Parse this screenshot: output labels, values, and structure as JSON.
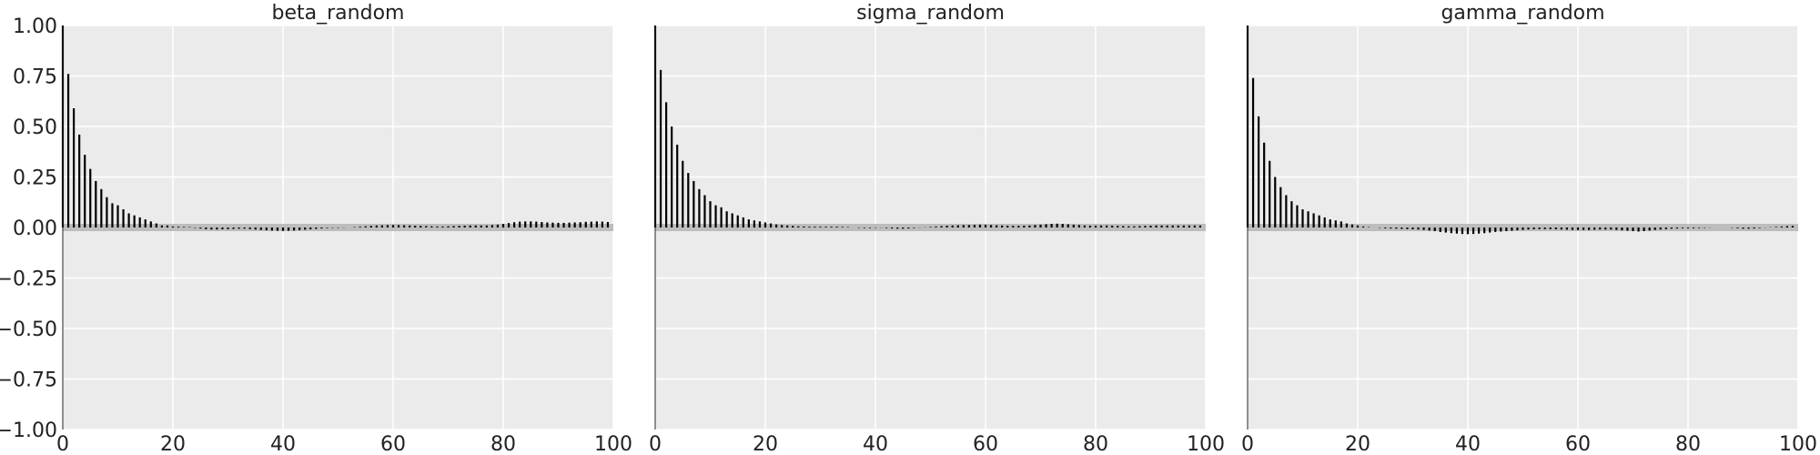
{
  "chart_data": [
    {
      "type": "bar",
      "title": "beta_random",
      "xlim": [
        0,
        100
      ],
      "ylim": [
        -1,
        1
      ],
      "grid": true,
      "x_ticks": [
        "0",
        "20",
        "40",
        "60",
        "80",
        "100"
      ],
      "y_ticks": [
        "1.00",
        "0.75",
        "0.50",
        "0.25",
        "0.00",
        "−0.25",
        "−0.50",
        "−0.75",
        "−1.00"
      ],
      "x": [
        0,
        1,
        2,
        3,
        4,
        5,
        6,
        7,
        8,
        9,
        10,
        11,
        12,
        13,
        14,
        15,
        16,
        17,
        18,
        19,
        20,
        21,
        22,
        23,
        24,
        25,
        26,
        27,
        28,
        29,
        30,
        31,
        32,
        33,
        34,
        35,
        36,
        37,
        38,
        39,
        40,
        41,
        42,
        43,
        44,
        45,
        46,
        47,
        48,
        49,
        50,
        51,
        52,
        53,
        54,
        55,
        56,
        57,
        58,
        59,
        60,
        61,
        62,
        63,
        64,
        65,
        66,
        67,
        68,
        69,
        70,
        71,
        72,
        73,
        74,
        75,
        76,
        77,
        78,
        79,
        80,
        81,
        82,
        83,
        84,
        85,
        86,
        87,
        88,
        89,
        90,
        91,
        92,
        93,
        94,
        95,
        96,
        97,
        98,
        99
      ],
      "values": [
        1.0,
        0.76,
        0.59,
        0.46,
        0.36,
        0.29,
        0.23,
        0.19,
        0.15,
        0.12,
        0.11,
        0.09,
        0.07,
        0.06,
        0.05,
        0.04,
        0.03,
        0.02,
        0.01,
        0.01,
        0.005,
        0.004,
        0.003,
        0.002,
        -0.002,
        -0.005,
        -0.008,
        -0.01,
        -0.01,
        -0.009,
        -0.008,
        -0.007,
        -0.006,
        -0.006,
        -0.008,
        -0.01,
        -0.012,
        -0.014,
        -0.015,
        -0.016,
        -0.017,
        -0.016,
        -0.015,
        -0.013,
        -0.011,
        -0.009,
        -0.007,
        -0.005,
        -0.003,
        -0.002,
        -0.002,
        -0.001,
        0.0,
        0.002,
        0.004,
        0.006,
        0.008,
        0.01,
        0.011,
        0.012,
        0.012,
        0.012,
        0.011,
        0.01,
        0.009,
        0.008,
        0.007,
        0.006,
        0.005,
        0.005,
        0.006,
        0.007,
        0.008,
        0.009,
        0.01,
        0.01,
        0.01,
        0.01,
        0.012,
        0.014,
        0.018,
        0.022,
        0.026,
        0.029,
        0.03,
        0.03,
        0.029,
        0.027,
        0.025,
        0.024,
        0.023,
        0.023,
        0.024,
        0.025,
        0.026,
        0.028,
        0.029,
        0.03,
        0.029,
        0.027
      ]
    },
    {
      "type": "bar",
      "title": "sigma_random",
      "xlim": [
        0,
        100
      ],
      "ylim": [
        -1,
        1
      ],
      "grid": true,
      "x_ticks": [
        "0",
        "20",
        "40",
        "60",
        "80",
        "100"
      ],
      "x": [
        0,
        1,
        2,
        3,
        4,
        5,
        6,
        7,
        8,
        9,
        10,
        11,
        12,
        13,
        14,
        15,
        16,
        17,
        18,
        19,
        20,
        21,
        22,
        23,
        24,
        25,
        26,
        27,
        28,
        29,
        30,
        31,
        32,
        33,
        34,
        35,
        36,
        37,
        38,
        39,
        40,
        41,
        42,
        43,
        44,
        45,
        46,
        47,
        48,
        49,
        50,
        51,
        52,
        53,
        54,
        55,
        56,
        57,
        58,
        59,
        60,
        61,
        62,
        63,
        64,
        65,
        66,
        67,
        68,
        69,
        70,
        71,
        72,
        73,
        74,
        75,
        76,
        77,
        78,
        79,
        80,
        81,
        82,
        83,
        84,
        85,
        86,
        87,
        88,
        89,
        90,
        91,
        92,
        93,
        94,
        95,
        96,
        97,
        98,
        99
      ],
      "values": [
        1.0,
        0.78,
        0.62,
        0.5,
        0.41,
        0.33,
        0.27,
        0.23,
        0.19,
        0.16,
        0.13,
        0.11,
        0.1,
        0.08,
        0.07,
        0.06,
        0.05,
        0.04,
        0.035,
        0.03,
        0.025,
        0.02,
        0.015,
        0.012,
        0.01,
        0.008,
        0.006,
        0.005,
        0.004,
        0.004,
        0.004,
        0.004,
        0.004,
        0.004,
        0.003,
        0.002,
        0.0,
        -0.002,
        -0.003,
        -0.003,
        -0.002,
        -0.001,
        -0.003,
        -0.005,
        -0.006,
        -0.006,
        -0.005,
        -0.003,
        -0.001,
        0.001,
        0.003,
        0.005,
        0.007,
        0.009,
        0.01,
        0.011,
        0.012,
        0.012,
        0.013,
        0.014,
        0.013,
        0.012,
        0.011,
        0.01,
        0.009,
        0.008,
        0.008,
        0.009,
        0.01,
        0.012,
        0.014,
        0.016,
        0.018,
        0.019,
        0.018,
        0.016,
        0.014,
        0.012,
        0.01,
        0.009,
        0.009,
        0.01,
        0.01,
        0.009,
        0.008,
        0.007,
        0.006,
        0.006,
        0.007,
        0.008,
        0.009,
        0.01,
        0.01,
        0.01,
        0.01,
        0.01,
        0.01,
        0.01,
        0.01,
        0.01
      ]
    },
    {
      "type": "bar",
      "title": "gamma_random",
      "xlim": [
        0,
        100
      ],
      "ylim": [
        -1,
        1
      ],
      "grid": true,
      "x_ticks": [
        "0",
        "20",
        "40",
        "60",
        "80",
        "100"
      ],
      "x": [
        0,
        1,
        2,
        3,
        4,
        5,
        6,
        7,
        8,
        9,
        10,
        11,
        12,
        13,
        14,
        15,
        16,
        17,
        18,
        19,
        20,
        21,
        22,
        23,
        24,
        25,
        26,
        27,
        28,
        29,
        30,
        31,
        32,
        33,
        34,
        35,
        36,
        37,
        38,
        39,
        40,
        41,
        42,
        43,
        44,
        45,
        46,
        47,
        48,
        49,
        50,
        51,
        52,
        53,
        54,
        55,
        56,
        57,
        58,
        59,
        60,
        61,
        62,
        63,
        64,
        65,
        66,
        67,
        68,
        69,
        70,
        71,
        72,
        73,
        74,
        75,
        76,
        77,
        78,
        79,
        80,
        81,
        82,
        83,
        84,
        85,
        86,
        87,
        88,
        89,
        90,
        91,
        92,
        93,
        94,
        95,
        96,
        97,
        98,
        99
      ],
      "values": [
        1.0,
        0.74,
        0.55,
        0.42,
        0.33,
        0.25,
        0.2,
        0.16,
        0.13,
        0.11,
        0.09,
        0.08,
        0.07,
        0.06,
        0.05,
        0.04,
        0.035,
        0.03,
        0.02,
        0.015,
        0.01,
        0.005,
        0.002,
        0.0,
        -0.002,
        -0.004,
        -0.005,
        -0.006,
        -0.007,
        -0.008,
        -0.009,
        -0.01,
        -0.012,
        -0.015,
        -0.018,
        -0.022,
        -0.025,
        -0.028,
        -0.03,
        -0.032,
        -0.033,
        -0.032,
        -0.03,
        -0.028,
        -0.025,
        -0.022,
        -0.02,
        -0.018,
        -0.016,
        -0.014,
        -0.012,
        -0.01,
        -0.009,
        -0.008,
        -0.008,
        -0.008,
        -0.009,
        -0.01,
        -0.011,
        -0.012,
        -0.012,
        -0.012,
        -0.012,
        -0.011,
        -0.01,
        -0.01,
        -0.01,
        -0.012,
        -0.014,
        -0.016,
        -0.018,
        -0.02,
        -0.018,
        -0.015,
        -0.012,
        -0.01,
        -0.008,
        -0.006,
        -0.005,
        -0.004,
        -0.004,
        -0.004,
        -0.003,
        -0.002,
        -0.001,
        0.0,
        0.0,
        0.0,
        -0.002,
        -0.004,
        -0.006,
        -0.006,
        -0.005,
        -0.003,
        -0.001,
        0.001,
        0.003,
        0.005,
        0.007,
        0.008
      ]
    }
  ]
}
